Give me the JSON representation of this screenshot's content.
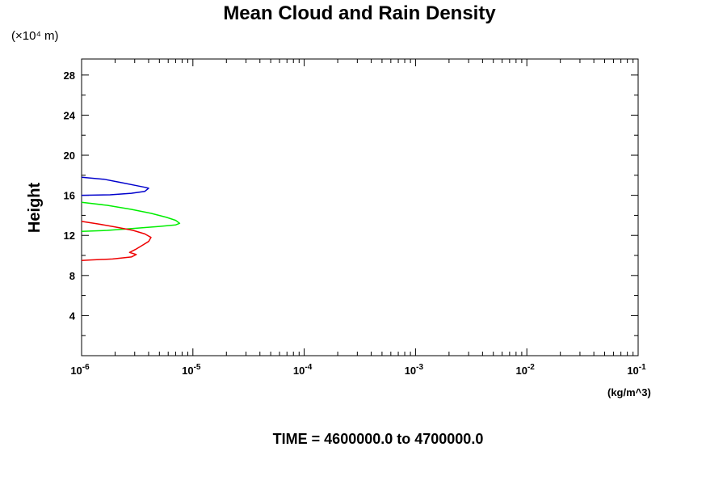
{
  "chart_data": {
    "type": "line",
    "title": "Mean Cloud and Rain Density",
    "ylabel": "Height",
    "xunit": "(kg/m^3)",
    "yscale_note": "(×10⁴ m)",
    "x_scale": "log",
    "xlim": [
      1e-06,
      0.1
    ],
    "ylim": [
      0,
      29.6
    ],
    "x_ticks": [
      {
        "base": "10",
        "exp": "-6"
      },
      {
        "base": "10",
        "exp": "-5"
      },
      {
        "base": "10",
        "exp": "-4"
      },
      {
        "base": "10",
        "exp": "-3"
      },
      {
        "base": "10",
        "exp": "-2"
      },
      {
        "base": "10",
        "exp": "-1"
      }
    ],
    "y_ticks": [
      "4",
      "8",
      "12",
      "16",
      "20",
      "24",
      "28"
    ],
    "grid": false,
    "series": [
      {
        "color": "#0000cc",
        "points": [
          [
            1e-06,
            17.8
          ],
          [
            1.6e-06,
            17.6
          ],
          [
            2.2e-06,
            17.3
          ],
          [
            3e-06,
            17.0
          ],
          [
            3.7e-06,
            16.8
          ],
          [
            4e-06,
            16.7
          ],
          [
            3.7e-06,
            16.4
          ],
          [
            2.8e-06,
            16.2
          ],
          [
            1.8e-06,
            16.05
          ],
          [
            1e-06,
            16.0
          ]
        ]
      },
      {
        "color": "#00ee00",
        "points": [
          [
            1e-06,
            15.3
          ],
          [
            1.7e-06,
            15.0
          ],
          [
            2.8e-06,
            14.6
          ],
          [
            4.2e-06,
            14.2
          ],
          [
            5.8e-06,
            13.8
          ],
          [
            7e-06,
            13.5
          ],
          [
            7.6e-06,
            13.2
          ],
          [
            7e-06,
            13.05
          ],
          [
            5e-06,
            12.9
          ],
          [
            3e-06,
            12.7
          ],
          [
            1.7e-06,
            12.5
          ],
          [
            1e-06,
            12.4
          ]
        ]
      },
      {
        "color": "#ee0000",
        "points": [
          [
            1e-06,
            13.4
          ],
          [
            1.4e-06,
            13.15
          ],
          [
            2e-06,
            12.85
          ],
          [
            2.9e-06,
            12.5
          ],
          [
            3.7e-06,
            12.15
          ],
          [
            4.2e-06,
            11.8
          ],
          [
            4e-06,
            11.4
          ],
          [
            3.5e-06,
            11.0
          ],
          [
            3.05e-06,
            10.6
          ],
          [
            2.7e-06,
            10.3
          ],
          [
            3.1e-06,
            10.1
          ],
          [
            2.8e-06,
            9.85
          ],
          [
            1.9e-06,
            9.65
          ],
          [
            1.2e-06,
            9.55
          ],
          [
            1e-06,
            9.5
          ]
        ]
      }
    ]
  },
  "footer": {
    "time_label": "TIME = 4600000.0 to 4700000.0"
  }
}
